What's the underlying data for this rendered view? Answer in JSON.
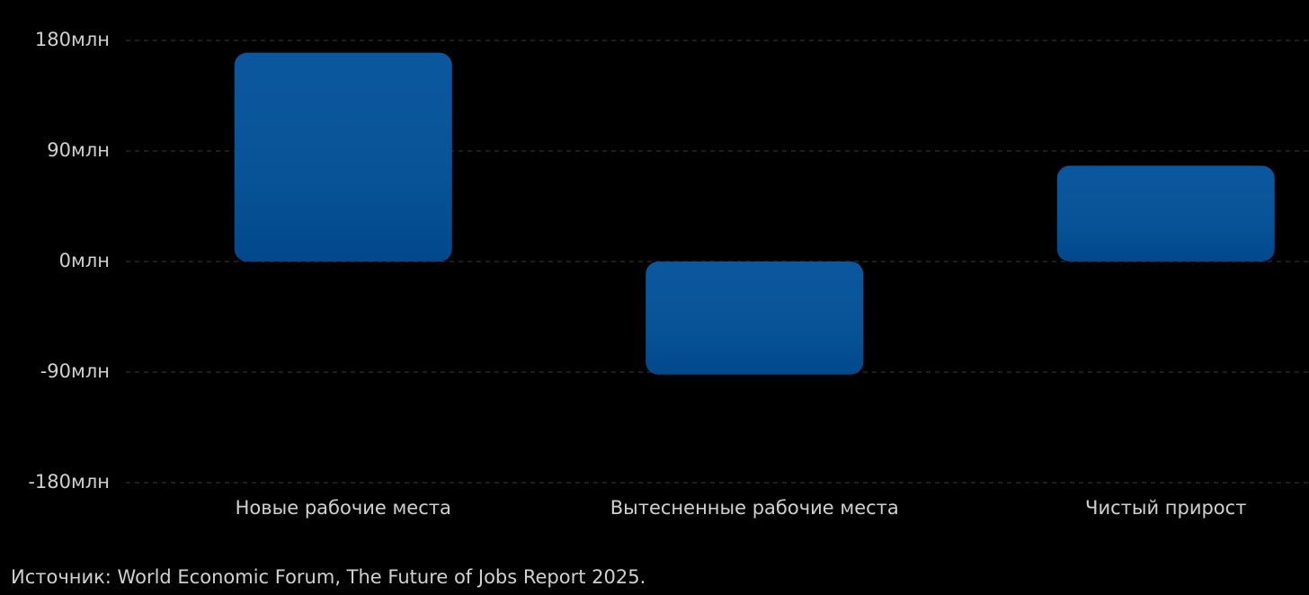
{
  "chart_data": {
    "type": "bar",
    "categories": [
      "Новые рабочие места",
      "Вытесненные рабочие места",
      "Чистый прирост"
    ],
    "values": [
      170,
      -92,
      78
    ],
    "color": "#00509a",
    "ylim": [
      -180,
      180
    ],
    "yticks": [
      {
        "value": -180,
        "label": "-180млн"
      },
      {
        "value": -90,
        "label": "-90млн"
      },
      {
        "value": 0,
        "label": "0млн"
      },
      {
        "value": 90,
        "label": "90млн"
      },
      {
        "value": 180,
        "label": "180млн"
      }
    ],
    "grid": true,
    "source": "Источник: World Economic Forum, The Future of Jobs Report 2025."
  }
}
